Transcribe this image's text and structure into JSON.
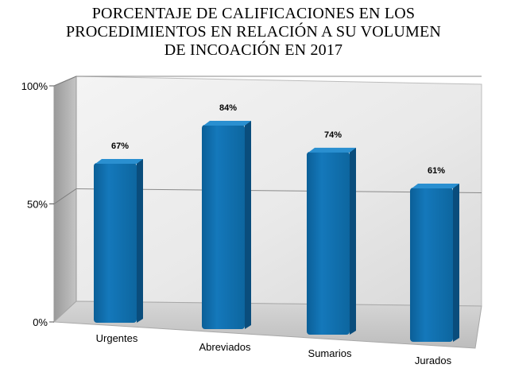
{
  "chart_data": {
    "type": "bar",
    "title_lines": [
      "PORCENTAJE DE CALIFICACIONES EN LOS",
      "PROCEDIMIENTOS EN RELACIÓN A SU VOLUMEN",
      "DE INCOACIÓN EN 2017"
    ],
    "categories": [
      "Urgentes",
      "Abreviados",
      "Sumarios",
      "Jurados"
    ],
    "values": [
      67,
      84,
      74,
      61
    ],
    "value_labels": [
      "67%",
      "84%",
      "74%",
      "61%"
    ],
    "ylim": [
      0,
      100
    ],
    "yticks": [
      "0%",
      "50%",
      "100%"
    ],
    "grid": true,
    "legend": "none",
    "colors": {
      "bar": "#0e6aa8",
      "bar_top": "#2a8fd0",
      "bar_side": "#0a4d7c"
    }
  }
}
